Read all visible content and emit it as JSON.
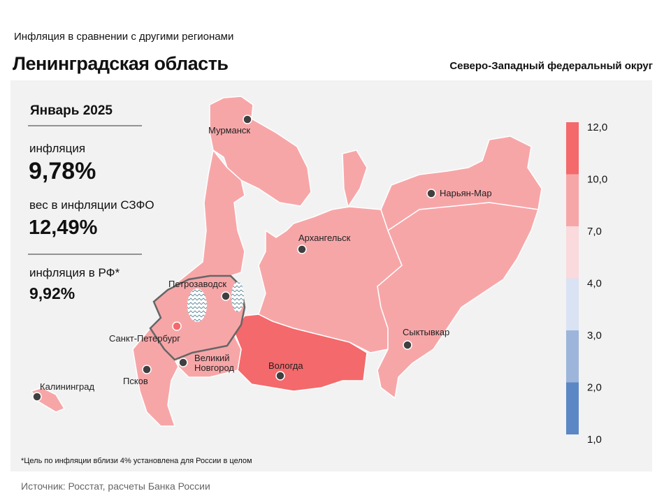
{
  "header": {
    "subtitle": "Инфляция  в сравнении  с другими  регионами",
    "title": "Ленинградская область",
    "district": "Северо-Западный федеральный округ"
  },
  "panel": {
    "period": "Январь 2025",
    "inflation_label": "инфляция",
    "inflation_value": "9,78%",
    "weight_label": "вес в инфляции  СЗФО",
    "weight_value": "12,49%",
    "rf_label": "инфляция  в РФ*",
    "rf_value": "9,92%"
  },
  "map": {
    "cities": [
      "Мурманск",
      "Нарьян-Мар",
      "Архангельск",
      "Петрозаводск",
      "Сыктывкар",
      "Санкт-Петербург",
      "Великий Новгород",
      "Вологда",
      "Псков",
      "Калининград"
    ]
  },
  "legend": {
    "ticks": [
      {
        "value": 12,
        "label": "12,0"
      },
      {
        "value": 10,
        "label": "10,0"
      },
      {
        "value": 7,
        "label": "7,0"
      },
      {
        "value": 4,
        "label": "4,0"
      },
      {
        "value": 3,
        "label": "3,0"
      },
      {
        "value": 2,
        "label": "2,0"
      },
      {
        "value": 1,
        "label": "1,0"
      }
    ],
    "colors": [
      "#f4696b",
      "#f7a6a8",
      "#fadadc",
      "#dae3f3",
      "#9db5da",
      "#5b87c5"
    ]
  },
  "footnote": "*Цель по инфляции вблизи 4% установлена для России в целом",
  "source": "Источник:  Росстат,  расчеты  Банка  России"
}
